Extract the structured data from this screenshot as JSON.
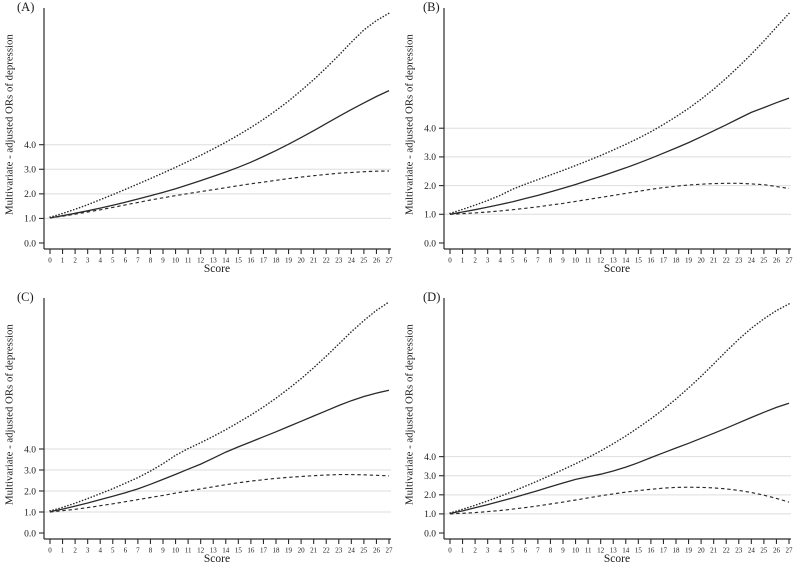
{
  "figure": {
    "background_color": "#ffffff",
    "text_color": "#1a1a1a",
    "grid_color": "#dedede",
    "axis_color": "#2b2b2b",
    "line_color": "#2a2a2a"
  },
  "chart_data": [
    {
      "type": "line",
      "panel": "(A)",
      "xlabel": "Score",
      "ylabel": "Multivariate - adjusted ORs of depression",
      "x_ticks": [
        0,
        1,
        2,
        3,
        4,
        5,
        6,
        7,
        8,
        9,
        10,
        11,
        12,
        13,
        14,
        15,
        16,
        17,
        18,
        19,
        20,
        21,
        22,
        23,
        24,
        25,
        26,
        27
      ],
      "yticks": [
        "0.0",
        "1.0",
        "2.0",
        "3.0",
        "4.0"
      ],
      "grid_values": [
        1,
        2,
        3,
        4
      ],
      "ylim": [
        0,
        9.4
      ],
      "legend": "none",
      "series": [
        {
          "style": "solid",
          "values": [
            1.02,
            1.11,
            1.21,
            1.31,
            1.42,
            1.54,
            1.66,
            1.79,
            1.92,
            2.06,
            2.21,
            2.37,
            2.54,
            2.71,
            2.89,
            3.08,
            3.29,
            3.52,
            3.76,
            4.02,
            4.29,
            4.57,
            4.86,
            5.15,
            5.43,
            5.7,
            5.96,
            6.2
          ]
        },
        {
          "style": "dotted",
          "values": [
            1.05,
            1.2,
            1.37,
            1.56,
            1.76,
            1.97,
            2.18,
            2.4,
            2.62,
            2.85,
            3.08,
            3.32,
            3.57,
            3.83,
            4.1,
            4.39,
            4.7,
            5.03,
            5.39,
            5.78,
            6.2,
            6.65,
            7.13,
            7.64,
            8.17,
            8.67,
            9.05,
            9.35
          ]
        },
        {
          "style": "dashed",
          "values": [
            1.02,
            1.09,
            1.17,
            1.26,
            1.35,
            1.45,
            1.55,
            1.65,
            1.75,
            1.84,
            1.93,
            2.01,
            2.09,
            2.17,
            2.25,
            2.33,
            2.41,
            2.48,
            2.55,
            2.62,
            2.68,
            2.74,
            2.79,
            2.84,
            2.87,
            2.9,
            2.92,
            2.93
          ]
        }
      ]
    },
    {
      "type": "line",
      "panel": "(B)",
      "xlabel": "Score",
      "ylabel": "Multivariate - adjusted ORs of depression",
      "x_ticks": [
        0,
        1,
        2,
        3,
        4,
        5,
        6,
        7,
        8,
        9,
        10,
        11,
        12,
        13,
        14,
        15,
        16,
        17,
        18,
        19,
        20,
        21,
        22,
        23,
        24,
        25,
        26,
        27
      ],
      "yticks": [
        "0.0",
        "1.0",
        "2.0",
        "3.0",
        "4.0"
      ],
      "grid_values": [
        1,
        2,
        3,
        4
      ],
      "ylim": [
        0,
        8.05
      ],
      "legend": "none",
      "series": [
        {
          "style": "solid",
          "values": [
            1.0,
            1.08,
            1.16,
            1.25,
            1.34,
            1.44,
            1.55,
            1.66,
            1.78,
            1.91,
            2.04,
            2.18,
            2.32,
            2.47,
            2.62,
            2.78,
            2.95,
            3.13,
            3.31,
            3.5,
            3.7,
            3.91,
            4.12,
            4.34,
            4.55,
            4.72,
            4.89,
            5.05
          ]
        },
        {
          "style": "dotted",
          "values": [
            1.03,
            1.17,
            1.32,
            1.48,
            1.66,
            1.88,
            2.05,
            2.21,
            2.37,
            2.53,
            2.7,
            2.87,
            3.05,
            3.24,
            3.44,
            3.65,
            3.88,
            4.13,
            4.4,
            4.69,
            5.01,
            5.36,
            5.74,
            6.15,
            6.58,
            7.04,
            7.52,
            8.0
          ]
        },
        {
          "style": "dashed",
          "values": [
            1.0,
            1.02,
            1.05,
            1.08,
            1.12,
            1.16,
            1.21,
            1.26,
            1.32,
            1.38,
            1.45,
            1.52,
            1.59,
            1.66,
            1.73,
            1.8,
            1.87,
            1.93,
            1.98,
            2.02,
            2.05,
            2.07,
            2.08,
            2.08,
            2.06,
            2.03,
            1.97,
            1.9
          ]
        }
      ]
    },
    {
      "type": "line",
      "panel": "(C)",
      "xlabel": "Score",
      "ylabel": "Multivariate - adjusted ORs of depression",
      "x_ticks": [
        0,
        1,
        2,
        3,
        4,
        5,
        6,
        7,
        8,
        9,
        10,
        11,
        12,
        13,
        14,
        15,
        16,
        17,
        18,
        19,
        20,
        21,
        22,
        23,
        24,
        25,
        26,
        27
      ],
      "yticks": [
        "0.0",
        "1.0",
        "2.0",
        "3.0",
        "4.0"
      ],
      "grid_values": [
        1,
        2,
        3,
        4
      ],
      "ylim": [
        0,
        11.0
      ],
      "legend": "none",
      "series": [
        {
          "style": "solid",
          "values": [
            1.02,
            1.14,
            1.28,
            1.43,
            1.59,
            1.75,
            1.92,
            2.1,
            2.32,
            2.55,
            2.79,
            3.04,
            3.28,
            3.56,
            3.85,
            4.1,
            4.34,
            4.58,
            4.82,
            5.07,
            5.32,
            5.57,
            5.82,
            6.07,
            6.3,
            6.5,
            6.66,
            6.8
          ]
        },
        {
          "style": "dotted",
          "values": [
            1.05,
            1.22,
            1.42,
            1.64,
            1.87,
            2.11,
            2.37,
            2.64,
            2.95,
            3.3,
            3.7,
            4.02,
            4.3,
            4.6,
            4.92,
            5.26,
            5.62,
            6.0,
            6.42,
            6.87,
            7.35,
            7.87,
            8.42,
            9.0,
            9.58,
            10.12,
            10.6,
            11.0
          ]
        },
        {
          "style": "dashed",
          "values": [
            1.0,
            1.06,
            1.13,
            1.21,
            1.3,
            1.39,
            1.49,
            1.59,
            1.69,
            1.79,
            1.9,
            2.0,
            2.1,
            2.2,
            2.3,
            2.39,
            2.47,
            2.54,
            2.6,
            2.65,
            2.69,
            2.73,
            2.76,
            2.78,
            2.78,
            2.77,
            2.75,
            2.72
          ]
        }
      ]
    },
    {
      "type": "line",
      "panel": "(D)",
      "xlabel": "Score",
      "ylabel": "Multivariate - adjusted ORs of depression",
      "x_ticks": [
        0,
        1,
        2,
        3,
        4,
        5,
        6,
        7,
        8,
        9,
        10,
        11,
        12,
        13,
        14,
        15,
        16,
        17,
        18,
        19,
        20,
        21,
        22,
        23,
        24,
        25,
        26,
        27
      ],
      "yticks": [
        "0.0",
        "1.0",
        "2.0",
        "3.0",
        "4.0"
      ],
      "grid_values": [
        1,
        2,
        3,
        4
      ],
      "ylim": [
        0,
        12.1
      ],
      "legend": "none",
      "series": [
        {
          "style": "solid",
          "values": [
            1.02,
            1.16,
            1.32,
            1.49,
            1.66,
            1.84,
            2.03,
            2.22,
            2.42,
            2.62,
            2.81,
            2.95,
            3.08,
            3.25,
            3.45,
            3.68,
            3.95,
            4.2,
            4.45,
            4.7,
            4.96,
            5.22,
            5.49,
            5.77,
            6.05,
            6.32,
            6.58,
            6.8
          ]
        },
        {
          "style": "dotted",
          "values": [
            1.05,
            1.24,
            1.45,
            1.68,
            1.92,
            2.18,
            2.45,
            2.73,
            3.02,
            3.32,
            3.63,
            3.95,
            4.3,
            4.68,
            5.08,
            5.52,
            5.98,
            6.48,
            7.02,
            7.6,
            8.21,
            8.86,
            9.52,
            10.15,
            10.72,
            11.22,
            11.65,
            12.0
          ]
        },
        {
          "style": "dashed",
          "values": [
            1.0,
            1.03,
            1.07,
            1.12,
            1.18,
            1.25,
            1.33,
            1.42,
            1.52,
            1.62,
            1.73,
            1.84,
            1.95,
            2.05,
            2.14,
            2.22,
            2.29,
            2.35,
            2.39,
            2.4,
            2.39,
            2.36,
            2.31,
            2.23,
            2.12,
            1.98,
            1.81,
            1.62
          ]
        }
      ]
    }
  ]
}
